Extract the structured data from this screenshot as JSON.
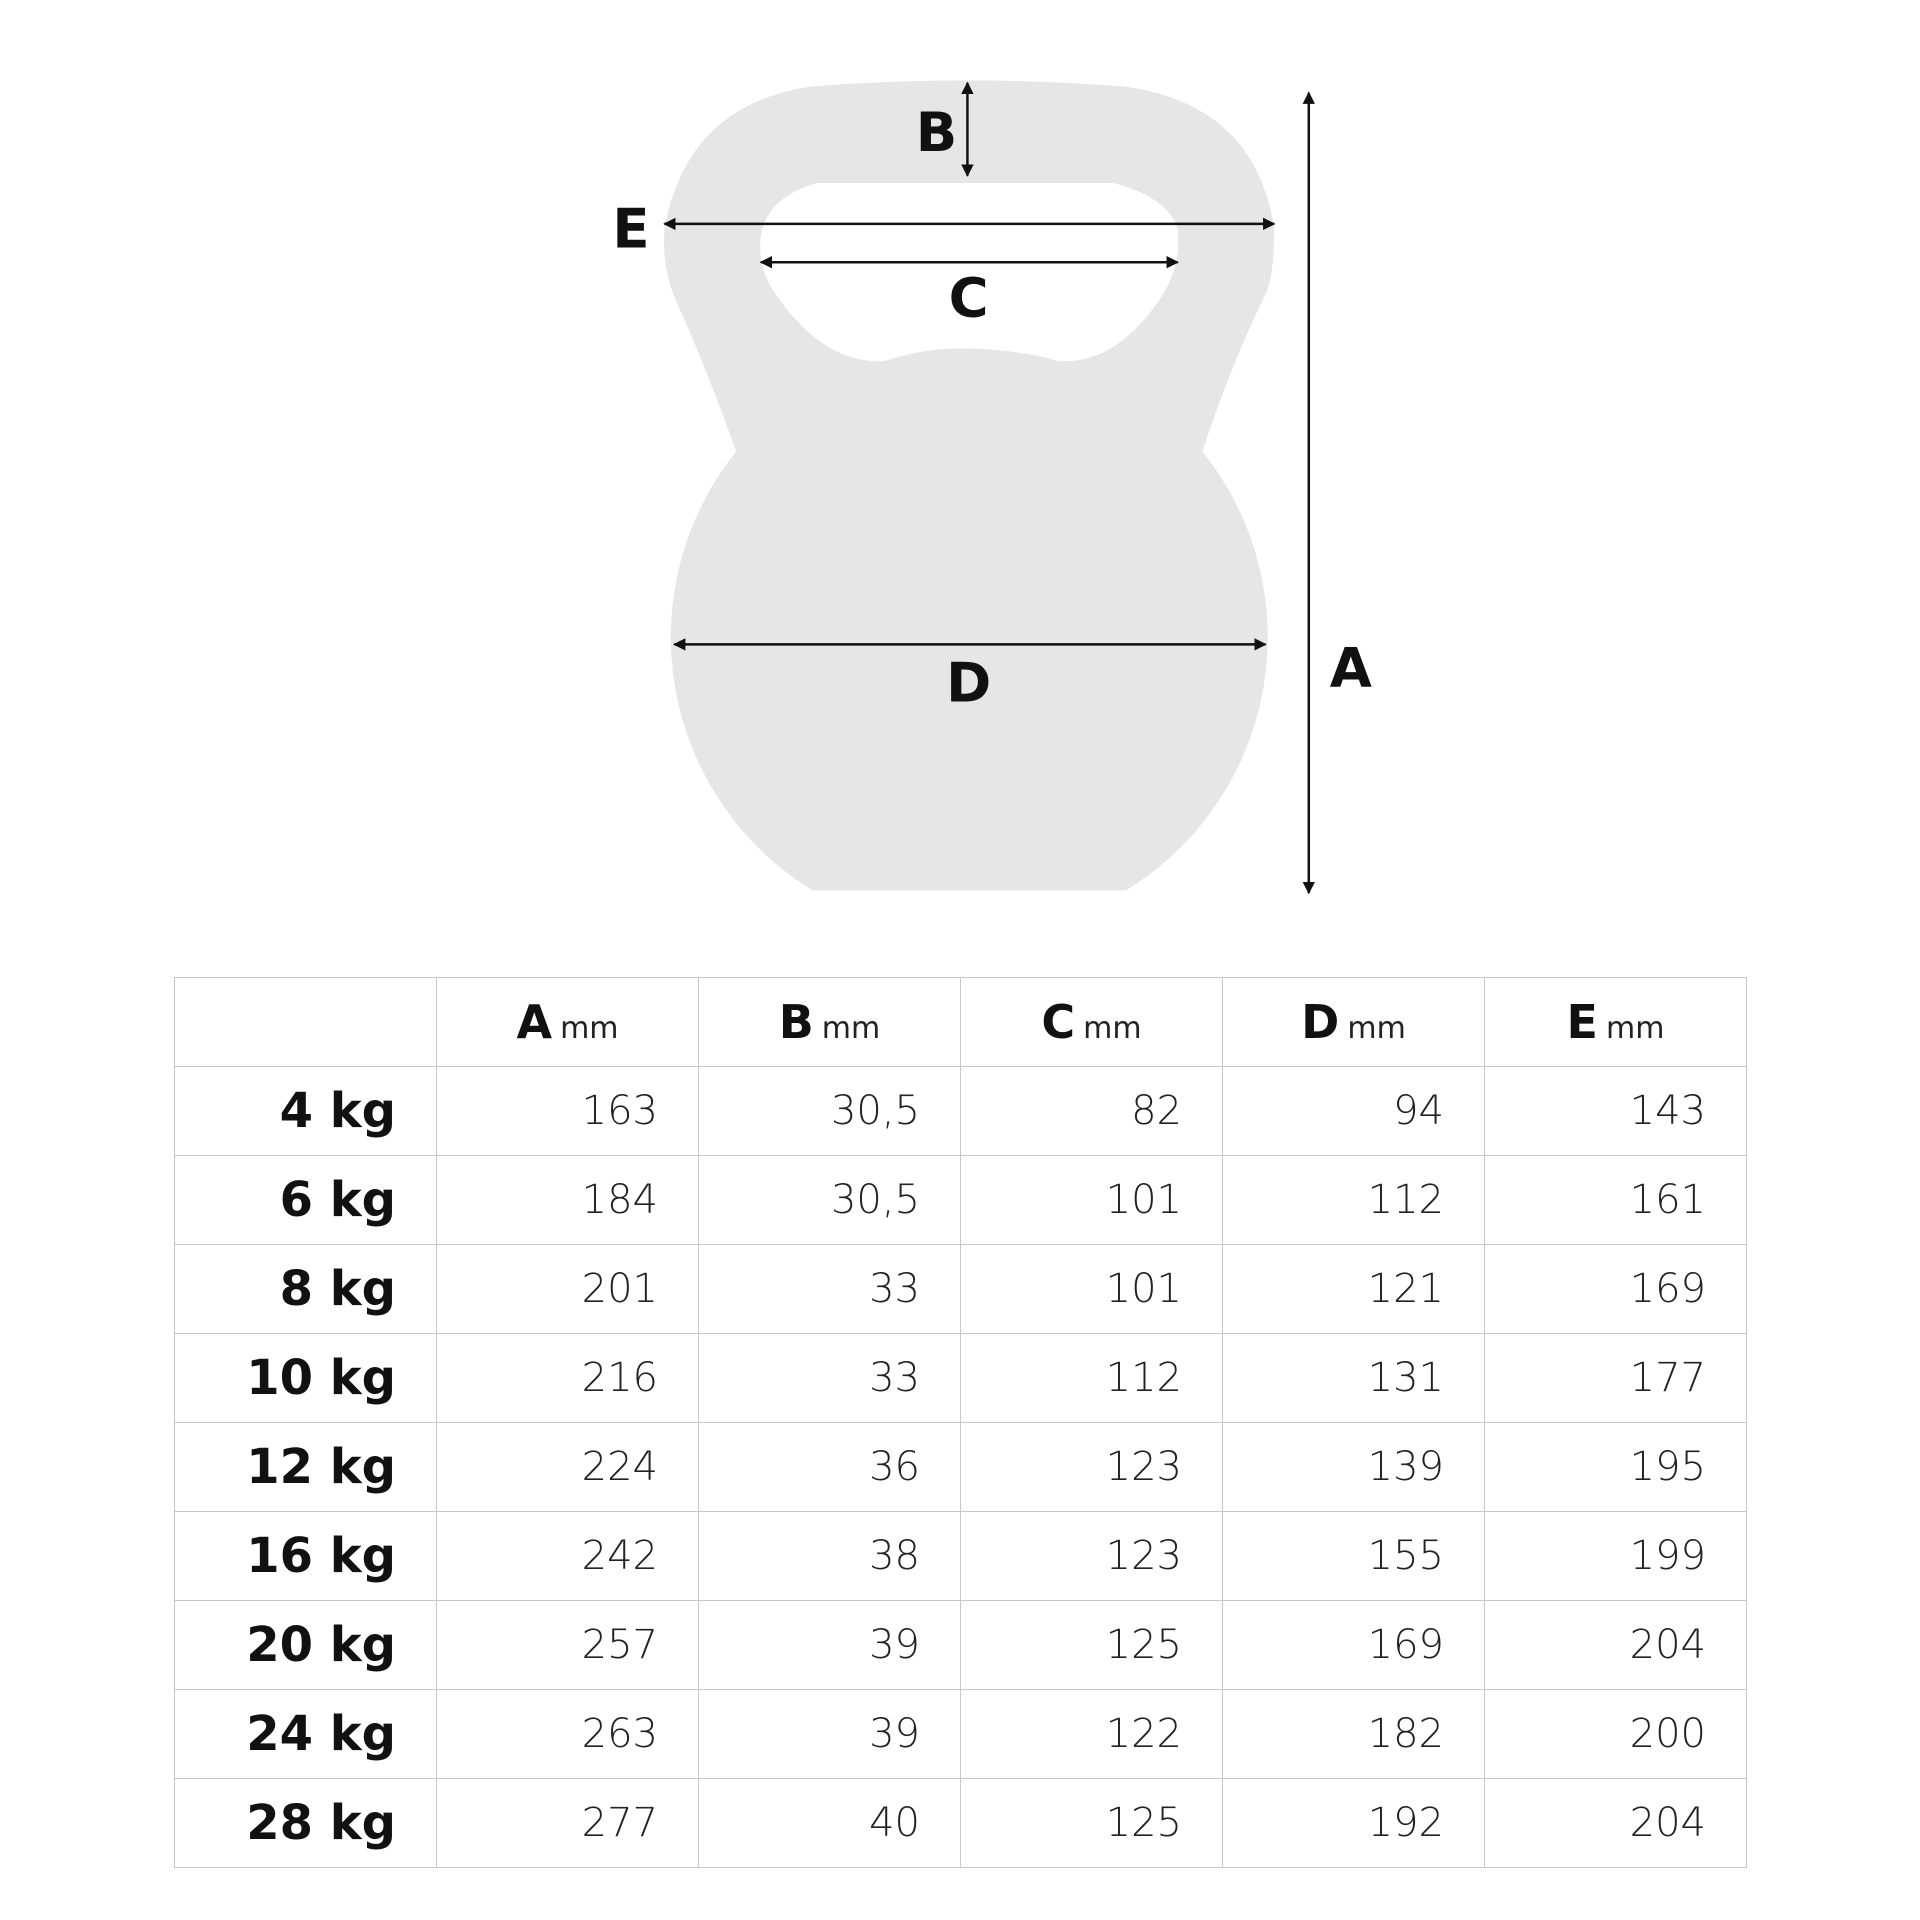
{
  "diagram": {
    "labels": {
      "A": "A",
      "B": "B",
      "C": "C",
      "D": "D",
      "E": "E"
    },
    "shape_color": "#e6e6e6"
  },
  "table": {
    "columns": [
      {
        "letter": "A",
        "unit": "mm"
      },
      {
        "letter": "B",
        "unit": "mm"
      },
      {
        "letter": "C",
        "unit": "mm"
      },
      {
        "letter": "D",
        "unit": "mm"
      },
      {
        "letter": "E",
        "unit": "mm"
      }
    ],
    "rows": [
      {
        "weight": "4 kg",
        "values": [
          "163",
          "30,5",
          "82",
          "94",
          "143"
        ]
      },
      {
        "weight": "6 kg",
        "values": [
          "184",
          "30,5",
          "101",
          "112",
          "161"
        ]
      },
      {
        "weight": "8 kg",
        "values": [
          "201",
          "33",
          "101",
          "121",
          "169"
        ]
      },
      {
        "weight": "10 kg",
        "values": [
          "216",
          "33",
          "112",
          "131",
          "177"
        ]
      },
      {
        "weight": "12 kg",
        "values": [
          "224",
          "36",
          "123",
          "139",
          "195"
        ]
      },
      {
        "weight": "16 kg",
        "values": [
          "242",
          "38",
          "123",
          "155",
          "199"
        ]
      },
      {
        "weight": "20 kg",
        "values": [
          "257",
          "39",
          "125",
          "169",
          "204"
        ]
      },
      {
        "weight": "24 kg",
        "values": [
          "263",
          "39",
          "122",
          "182",
          "200"
        ]
      },
      {
        "weight": "28 kg",
        "values": [
          "277",
          "40",
          "125",
          "192",
          "204"
        ]
      }
    ]
  }
}
